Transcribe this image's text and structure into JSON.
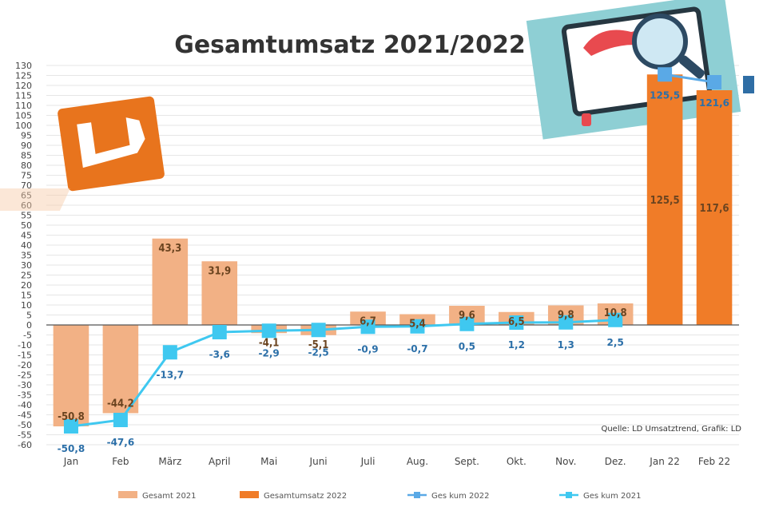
{
  "chart_data": {
    "type": "bar",
    "title": "Gesamtumsatz 2021/2022",
    "categories": [
      "Jan",
      "Feb",
      "März",
      "April",
      "Mai",
      "Juni",
      "Juli",
      "Aug.",
      "Sept.",
      "Okt.",
      "Nov.",
      "Dez.",
      "Jan 22",
      "Feb 22"
    ],
    "y_ticks": [
      -60,
      -55,
      -50,
      -45,
      -40,
      -35,
      -30,
      -25,
      -20,
      -15,
      -10,
      -5,
      0,
      5,
      10,
      15,
      20,
      25,
      30,
      35,
      40,
      45,
      50,
      55,
      60,
      65,
      70,
      75,
      80,
      85,
      90,
      95,
      100,
      105,
      110,
      115,
      120,
      125,
      130
    ],
    "ylim": [
      -60,
      130
    ],
    "grid": true,
    "series": [
      {
        "name": "Gesamt 2021",
        "kind": "bar",
        "color": "#f2b185",
        "values": [
          -50.8,
          -44.2,
          43.3,
          31.9,
          -4.1,
          -5.1,
          6.7,
          5.4,
          9.6,
          6.5,
          9.8,
          10.8,
          null,
          null
        ],
        "labels": [
          "-50,8",
          "-44,2",
          "43,3",
          "31,9",
          "-4,1",
          "-5,1",
          "6,7",
          "5,4",
          "9,6",
          "6,5",
          "9,8",
          "10,8",
          "",
          ""
        ]
      },
      {
        "name": "Gesamtumsatz 2022",
        "kind": "bar",
        "color": "#f07c28",
        "values": [
          null,
          null,
          null,
          null,
          null,
          null,
          null,
          null,
          null,
          null,
          null,
          null,
          125.5,
          117.6
        ],
        "labels": [
          "",
          "",
          "",
          "",
          "",
          "",
          "",
          "",
          "",
          "",
          "",
          "",
          "125,5",
          "117,6"
        ]
      },
      {
        "name": "Ges kum 2022",
        "kind": "line",
        "color": "#5aa9e6",
        "values": [
          null,
          null,
          null,
          null,
          null,
          null,
          null,
          null,
          null,
          null,
          null,
          null,
          125.5,
          121.6
        ],
        "labels": [
          "",
          "",
          "",
          "",
          "",
          "",
          "",
          "",
          "",
          "",
          "",
          "",
          "125,5",
          "121,6"
        ]
      },
      {
        "name": "Ges kum 2021",
        "kind": "line",
        "color": "#3fc8f0",
        "values": [
          -50.8,
          -47.6,
          -13.7,
          -3.6,
          -2.9,
          -2.5,
          -0.9,
          -0.7,
          0.5,
          1.2,
          1.3,
          2.5,
          null,
          null
        ],
        "labels": [
          "-50,8",
          "-47,6",
          "-13,7",
          "-3,6",
          "-2,9",
          "-2,5",
          "-0,9",
          "-0,7",
          "0,5",
          "1,2",
          "1,3",
          "2,5",
          "",
          ""
        ]
      }
    ],
    "legend_position": "bottom",
    "source_note": "Quelle: LD Umsatztrend, Grafik: LD"
  }
}
